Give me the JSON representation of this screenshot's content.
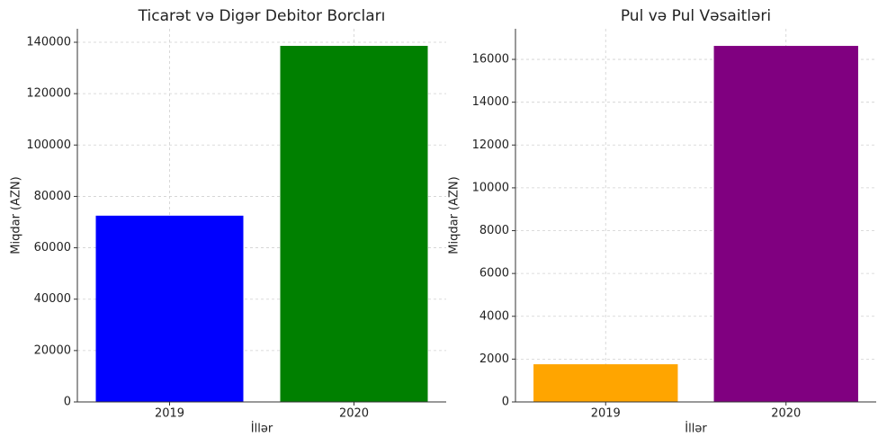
{
  "chart_data": [
    {
      "type": "bar",
      "title": "Ticarət və Digər Debitor Borcları",
      "x_label": "İllər",
      "y_label": "Miqdar (AZN)",
      "categories": [
        "2019",
        "2020"
      ],
      "values": [
        72500,
        138600
      ],
      "colors": [
        "#0000ff",
        "#008000"
      ],
      "ylim": [
        0,
        145250
      ],
      "yticks": [
        0,
        20000,
        40000,
        60000,
        80000,
        100000,
        120000,
        140000
      ],
      "grid": true
    },
    {
      "type": "bar",
      "title": "Pul və Pul Vəsaitləri",
      "x_label": "İllər",
      "y_label": "Miqdar (AZN)",
      "categories": [
        "2019",
        "2020"
      ],
      "values": [
        1760,
        16630
      ],
      "colors": [
        "#ffa500",
        "#800080"
      ],
      "ylim": [
        0,
        17430
      ],
      "yticks": [
        0,
        2000,
        4000,
        6000,
        8000,
        10000,
        12000,
        14000,
        16000
      ],
      "grid": true
    }
  ]
}
